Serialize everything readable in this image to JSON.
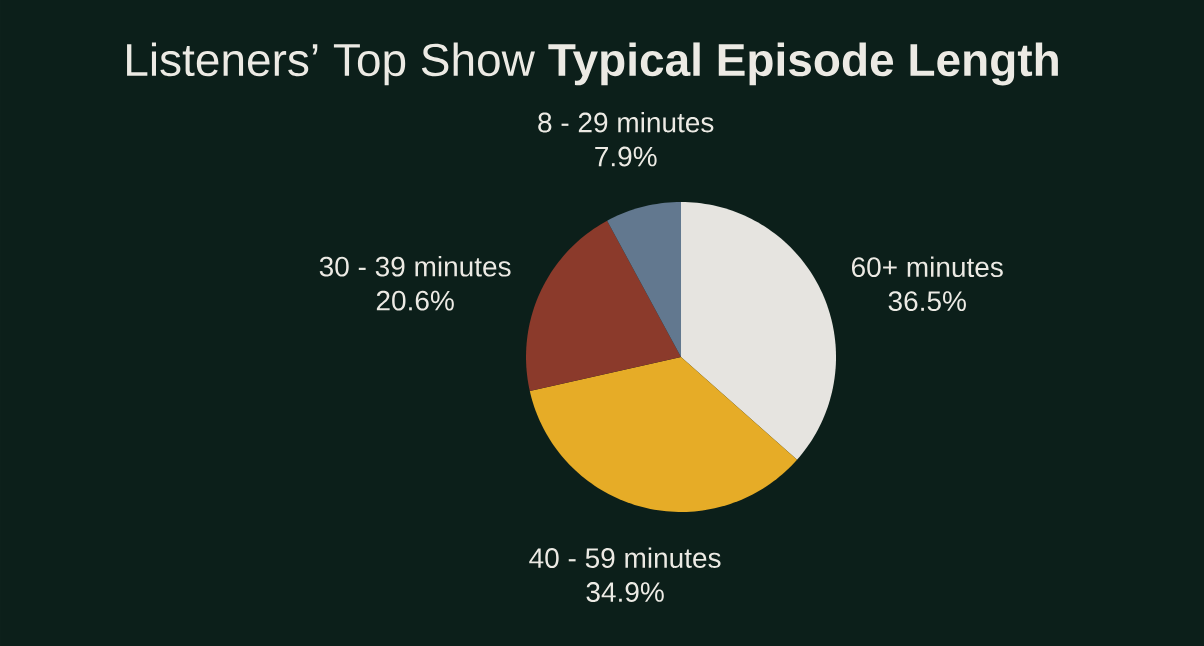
{
  "chart_data": {
    "type": "pie",
    "title": "Listeners’ Top Show **Typical Episode Length**",
    "categories": [
      "60+ minutes",
      "40 - 59 minutes",
      "30 - 39 minutes",
      "8 - 29 minutes"
    ],
    "values": [
      36.5,
      34.9,
      20.6,
      7.9
    ],
    "colors": [
      "#e6e4e0",
      "#e6ac27",
      "#8b3a2b",
      "#62788f"
    ],
    "value_labels": [
      "36.5%",
      "34.9%",
      "20.6%",
      "7.9%"
    ]
  }
}
